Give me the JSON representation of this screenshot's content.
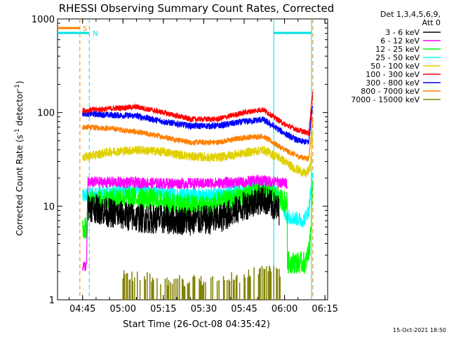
{
  "chart_data": {
    "type": "line",
    "title": "RHESSI Observing Summary Count Rates, Corrected",
    "xlabel": "Start Time (26-Oct-08 04:35:42)",
    "ylabel_parts": {
      "main": "Corrected Count Rate (s",
      "sup1": "-1",
      "mid": " detector",
      "sup2": "-1",
      "end": ")"
    },
    "yscale": "log",
    "ylim": [
      1,
      1000
    ],
    "xlim": [
      "04:35:42",
      "06:16:00"
    ],
    "x_ticks": [
      "04:45",
      "05:00",
      "05:15",
      "05:30",
      "05:45",
      "06:00",
      "06:15"
    ],
    "y_ticks": [
      "1",
      "10",
      "100",
      "1000"
    ],
    "legend_title": "Det 1,3,4,5,6,9,",
    "legend_subtitle": "Att 0",
    "timestamp": "15-Oct-2021 18:50",
    "markers": {
      "saa_label": "S",
      "night_label": "N"
    },
    "colors": {
      "cyan": "#00e0e0",
      "orange": "#ff8000",
      "axis": "#000000"
    },
    "series": [
      {
        "name": "3 - 6 keV",
        "color": "#000000",
        "noise": 0.16,
        "points": [
          [
            "04:47:00",
            10
          ],
          [
            "04:55:00",
            8.5
          ],
          [
            "05:05:00",
            7.5
          ],
          [
            "05:15:00",
            7.2
          ],
          [
            "05:25:00",
            7
          ],
          [
            "05:35:00",
            7.2
          ],
          [
            "05:42:00",
            9
          ],
          [
            "05:48:00",
            11
          ],
          [
            "05:52:00",
            12
          ],
          [
            "05:58:00",
            9
          ]
        ]
      },
      {
        "name": "6 - 12 keV",
        "color": "#ff00ff",
        "noise": 0.06,
        "points": [
          [
            "04:45:00",
            2.3
          ],
          [
            "04:46:30",
            2.3
          ],
          [
            "04:47:00",
            18
          ],
          [
            "05:00:00",
            18
          ],
          [
            "05:15:00",
            17.5
          ],
          [
            "05:30:00",
            17.5
          ],
          [
            "05:45:00",
            18
          ],
          [
            "05:50:00",
            19
          ],
          [
            "05:58:00",
            18
          ],
          [
            "06:01:00",
            17.5
          ]
        ]
      },
      {
        "name": "12 - 25 keV",
        "color": "#00ff00",
        "noise": 0.12,
        "points": [
          [
            "04:45:00",
            5.5
          ],
          [
            "04:46:30",
            6
          ],
          [
            "04:47:00",
            11
          ],
          [
            "05:00:00",
            12.5
          ],
          [
            "05:10:00",
            12
          ],
          [
            "05:20:00",
            10.5
          ],
          [
            "05:30:00",
            10
          ],
          [
            "05:40:00",
            11.5
          ],
          [
            "05:48:00",
            14
          ],
          [
            "05:53:00",
            15
          ],
          [
            "05:58:00",
            12
          ],
          [
            "06:01:00",
            11
          ],
          [
            "06:01:01",
            2.5
          ],
          [
            "06:08:00",
            2.5
          ],
          [
            "06:09:30",
            4
          ],
          [
            "06:10:30",
            20
          ]
        ]
      },
      {
        "name": "25 - 50 keV",
        "color": "#00ffff",
        "noise": 0.08,
        "points": [
          [
            "04:45:00",
            13
          ],
          [
            "04:50:00",
            13.5
          ],
          [
            "05:05:00",
            15
          ],
          [
            "05:20:00",
            13
          ],
          [
            "05:35:00",
            13
          ],
          [
            "05:45:00",
            14.5
          ],
          [
            "05:52:00",
            17
          ],
          [
            "05:56:00",
            15
          ],
          [
            "05:59:00",
            12
          ],
          [
            "06:00:00",
            8
          ],
          [
            "06:07:00",
            7
          ],
          [
            "06:09:00",
            9
          ],
          [
            "06:10:30",
            25
          ]
        ]
      },
      {
        "name": "50 - 100 keV",
        "color": "#e0d000",
        "noise": 0.05,
        "points": [
          [
            "04:45:00",
            33
          ],
          [
            "04:55:00",
            38
          ],
          [
            "05:05:00",
            40
          ],
          [
            "05:15:00",
            38
          ],
          [
            "05:25:00",
            34
          ],
          [
            "05:35:00",
            33
          ],
          [
            "05:45:00",
            37
          ],
          [
            "05:52:00",
            40
          ],
          [
            "05:58:00",
            33
          ],
          [
            "06:03:00",
            26
          ],
          [
            "06:08:00",
            22
          ],
          [
            "06:09:30",
            26
          ],
          [
            "06:10:30",
            60
          ]
        ]
      },
      {
        "name": "100 - 300 keV",
        "color": "#ff0000",
        "noise": 0.03,
        "points": [
          [
            "04:45:00",
            105
          ],
          [
            "04:55:00",
            110
          ],
          [
            "05:05:00",
            115
          ],
          [
            "05:15:00",
            100
          ],
          [
            "05:25:00",
            85
          ],
          [
            "05:35:00",
            85
          ],
          [
            "05:45:00",
            100
          ],
          [
            "05:52:00",
            108
          ],
          [
            "06:00:00",
            75
          ],
          [
            "06:05:00",
            65
          ],
          [
            "06:09:00",
            60
          ],
          [
            "06:10:30",
            170
          ]
        ]
      },
      {
        "name": "300 - 800 keV",
        "color": "#0000ff",
        "noise": 0.035,
        "points": [
          [
            "04:45:00",
            98
          ],
          [
            "04:55:00",
            94
          ],
          [
            "05:05:00",
            92
          ],
          [
            "05:15:00",
            80
          ],
          [
            "05:25:00",
            72
          ],
          [
            "05:35:00",
            72
          ],
          [
            "05:45:00",
            80
          ],
          [
            "05:52:00",
            84
          ],
          [
            "06:00:00",
            60
          ],
          [
            "06:05:00",
            50
          ],
          [
            "06:09:00",
            48
          ],
          [
            "06:10:30",
            130
          ]
        ]
      },
      {
        "name": "800 - 7000 keV",
        "color": "#ff8000",
        "noise": 0.03,
        "points": [
          [
            "04:45:00",
            70
          ],
          [
            "04:55:00",
            68
          ],
          [
            "05:05:00",
            62
          ],
          [
            "05:15:00",
            55
          ],
          [
            "05:25:00",
            48
          ],
          [
            "05:35:00",
            48
          ],
          [
            "05:45:00",
            54
          ],
          [
            "05:52:00",
            56
          ],
          [
            "06:00:00",
            40
          ],
          [
            "06:05:00",
            34
          ],
          [
            "06:09:00",
            32
          ],
          [
            "06:10:30",
            90
          ]
        ]
      },
      {
        "name": "7000 - 15000 keV",
        "color": "#808000",
        "noise": 0.0,
        "style": "sparse",
        "points": [
          [
            "05:00:00",
            1.8
          ],
          [
            "05:10:00",
            1.8
          ],
          [
            "05:20:00",
            1.6
          ],
          [
            "05:30:00",
            1.6
          ],
          [
            "05:45:00",
            1.8
          ],
          [
            "05:55:00",
            2.2
          ],
          [
            "06:00:00",
            1.8
          ]
        ]
      }
    ],
    "cyan_intervals": [
      [
        "04:35:42",
        "04:47:30"
      ],
      [
        "05:56:00",
        "06:10:00"
      ]
    ],
    "orange_bar": [
      "04:35:42",
      "04:44:00"
    ],
    "vlines": [
      {
        "time": "04:44:00",
        "color": "#ff8000",
        "dash": true
      },
      {
        "time": "04:47:30",
        "color": "#00e0e0",
        "dash": true
      },
      {
        "time": "05:56:00",
        "color": "#00e0e0",
        "dash": false
      },
      {
        "time": "06:10:00",
        "color": "#00e0e0",
        "dash": false
      },
      {
        "time": "06:10:30",
        "color": "#ff8000",
        "dash": true
      }
    ]
  }
}
